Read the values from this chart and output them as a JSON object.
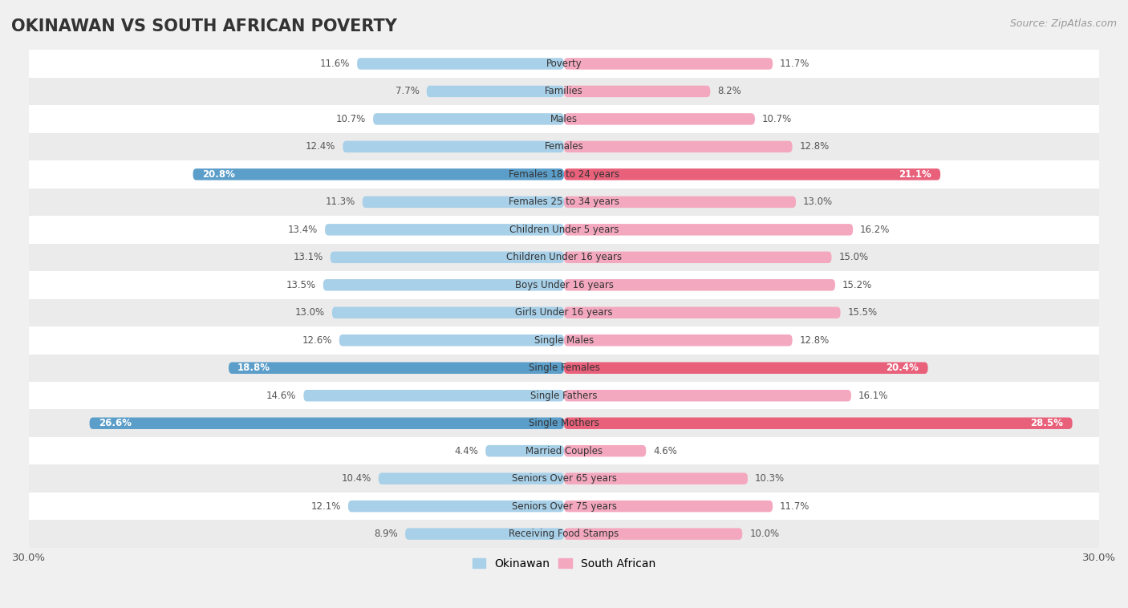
{
  "title": "OKINAWAN VS SOUTH AFRICAN POVERTY",
  "source": "Source: ZipAtlas.com",
  "categories": [
    "Poverty",
    "Families",
    "Males",
    "Females",
    "Females 18 to 24 years",
    "Females 25 to 34 years",
    "Children Under 5 years",
    "Children Under 16 years",
    "Boys Under 16 years",
    "Girls Under 16 years",
    "Single Males",
    "Single Females",
    "Single Fathers",
    "Single Mothers",
    "Married Couples",
    "Seniors Over 65 years",
    "Seniors Over 75 years",
    "Receiving Food Stamps"
  ],
  "okinawan": [
    11.6,
    7.7,
    10.7,
    12.4,
    20.8,
    11.3,
    13.4,
    13.1,
    13.5,
    13.0,
    12.6,
    18.8,
    14.6,
    26.6,
    4.4,
    10.4,
    12.1,
    8.9
  ],
  "south_african": [
    11.7,
    8.2,
    10.7,
    12.8,
    21.1,
    13.0,
    16.2,
    15.0,
    15.2,
    15.5,
    12.8,
    20.4,
    16.1,
    28.5,
    4.6,
    10.3,
    11.7,
    10.0
  ],
  "okinawan_color": "#a8d0e8",
  "south_african_color": "#f4a8bf",
  "highlight_okinawan_color": "#5b9ec9",
  "highlight_south_african_color": "#e8607a",
  "row_color_odd": "#f0f0f0",
  "row_color_even": "#fafafa",
  "background_color": "#f0f0f0",
  "axis_max": 30.0,
  "legend_labels": [
    "Okinawan",
    "South African"
  ],
  "title_fontsize": 15,
  "source_fontsize": 9,
  "bar_height": 0.42,
  "highlight_threshold": 17.0
}
